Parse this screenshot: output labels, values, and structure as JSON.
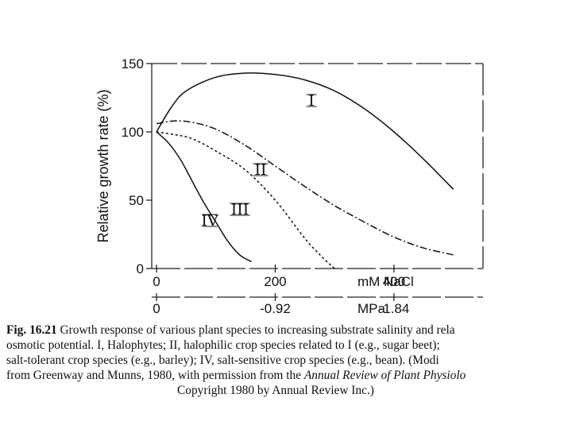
{
  "chart_data": {
    "type": "line",
    "ylabel": "Relative growth rate (%)",
    "ylim": [
      0,
      150
    ],
    "yticks": [
      "0",
      "50",
      "100",
      "150"
    ],
    "xlim": [
      0,
      550
    ],
    "xticks": [
      {
        "value": 0,
        "label": "0"
      },
      {
        "value": 200,
        "label": "200"
      },
      {
        "value": 400,
        "label": "400"
      }
    ],
    "xunit": "mM NaCl",
    "x2ticks": [
      {
        "value": 0,
        "label": "0"
      },
      {
        "value": 200,
        "label": "-0.92"
      },
      {
        "value": 400,
        "label": "-1.84"
      }
    ],
    "x2unit": "MPa",
    "series": [
      {
        "name": "I",
        "style": "solid",
        "x": [
          0,
          25,
          50,
          100,
          150,
          200,
          250,
          300,
          350,
          400,
          450,
          500
        ],
        "y": [
          100,
          118,
          130,
          140,
          143,
          142,
          138,
          130,
          117,
          100,
          80,
          58
        ]
      },
      {
        "name": "II",
        "style": "dashdot",
        "x": [
          0,
          30,
          60,
          100,
          150,
          200,
          250,
          300,
          350,
          400,
          450,
          500
        ],
        "y": [
          106,
          108,
          107,
          102,
          90,
          75,
          60,
          46,
          34,
          23,
          15,
          10
        ]
      },
      {
        "name": "III",
        "style": "dotted",
        "x": [
          0,
          30,
          60,
          100,
          150,
          200,
          250,
          280,
          300
        ],
        "y": [
          100,
          98,
          95,
          86,
          72,
          50,
          22,
          8,
          0
        ]
      },
      {
        "name": "IV",
        "style": "solid",
        "x": [
          0,
          20,
          40,
          60,
          80,
          100,
          120,
          140,
          160
        ],
        "y": [
          100,
          92,
          80,
          64,
          48,
          34,
          20,
          10,
          5
        ]
      }
    ],
    "labels": [
      {
        "series": "I",
        "text": "I"
      },
      {
        "series": "II",
        "text": "II"
      },
      {
        "series": "III",
        "text": "III"
      },
      {
        "series": "IV",
        "text": "IV"
      }
    ]
  },
  "caption": {
    "fig": "Fig. 16.21",
    "line1": " Growth response of various plant species to increasing substrate salinity and rela",
    "line2": "osmotic potential. I, Halophytes; II, halophilic crop species related to I (e.g., sugar beet);",
    "line3": "salt-tolerant crop species (e.g., barley); IV, salt-sensitive crop species (e.g., bean). (Modi",
    "line4a": "from Greenway and Munns, 1980, with permission from the ",
    "line4b": "Annual Review of Plant Physiolo",
    "line5": "Copyright 1980 by Annual Review Inc.)"
  }
}
